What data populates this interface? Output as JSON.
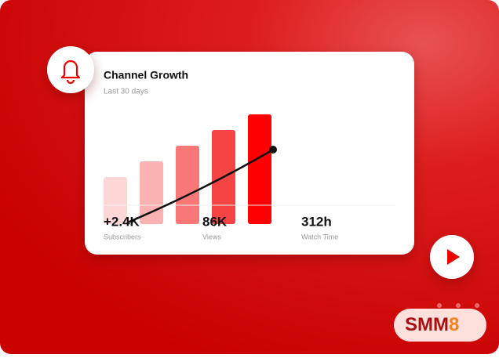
{
  "card": {
    "title": "Channel Growth",
    "subtitle": "Last 30 days",
    "stats": [
      {
        "value": "+2.4K",
        "label": "Subscribers"
      },
      {
        "value": "86K",
        "label": "Views"
      },
      {
        "value": "312h",
        "label": "Watch Time"
      }
    ]
  },
  "logo": {
    "text": "SMM",
    "digit": "8"
  }
}
